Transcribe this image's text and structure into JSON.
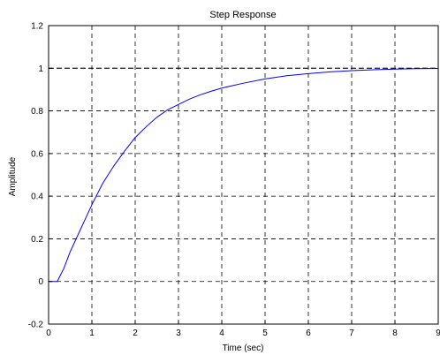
{
  "chart_data": {
    "type": "line",
    "title": "Step Response",
    "xlabel": "Time (sec)",
    "ylabel": "Amplitude",
    "xlim": [
      0,
      9
    ],
    "ylim": [
      -0.2,
      1.2
    ],
    "xticks": [
      "0",
      "1",
      "2",
      "3",
      "4",
      "5",
      "6",
      "7",
      "8",
      "9"
    ],
    "yticks": [
      "-0.2",
      "0",
      "0.2",
      "0.4",
      "0.6",
      "0.8",
      "1",
      "1.2"
    ],
    "grid": true,
    "series": [
      {
        "color": "#0000ff",
        "x": [
          0,
          0.2,
          0.35,
          0.5,
          0.75,
          1.0,
          1.25,
          1.5,
          1.75,
          2.0,
          2.25,
          2.5,
          2.75,
          3.0,
          3.25,
          3.5,
          3.75,
          4.0,
          4.5,
          5.0,
          5.5,
          6.0,
          6.5,
          7.0,
          7.5,
          8.0,
          8.5,
          9.0
        ],
        "y": [
          0,
          0,
          0.06,
          0.14,
          0.25,
          0.36,
          0.46,
          0.54,
          0.61,
          0.675,
          0.725,
          0.77,
          0.805,
          0.83,
          0.855,
          0.875,
          0.892,
          0.907,
          0.93,
          0.95,
          0.965,
          0.975,
          0.983,
          0.989,
          0.993,
          0.996,
          0.998,
          0.999
        ]
      }
    ],
    "reference_line": {
      "y": 1,
      "color": "#000000",
      "style": "dashed"
    }
  }
}
